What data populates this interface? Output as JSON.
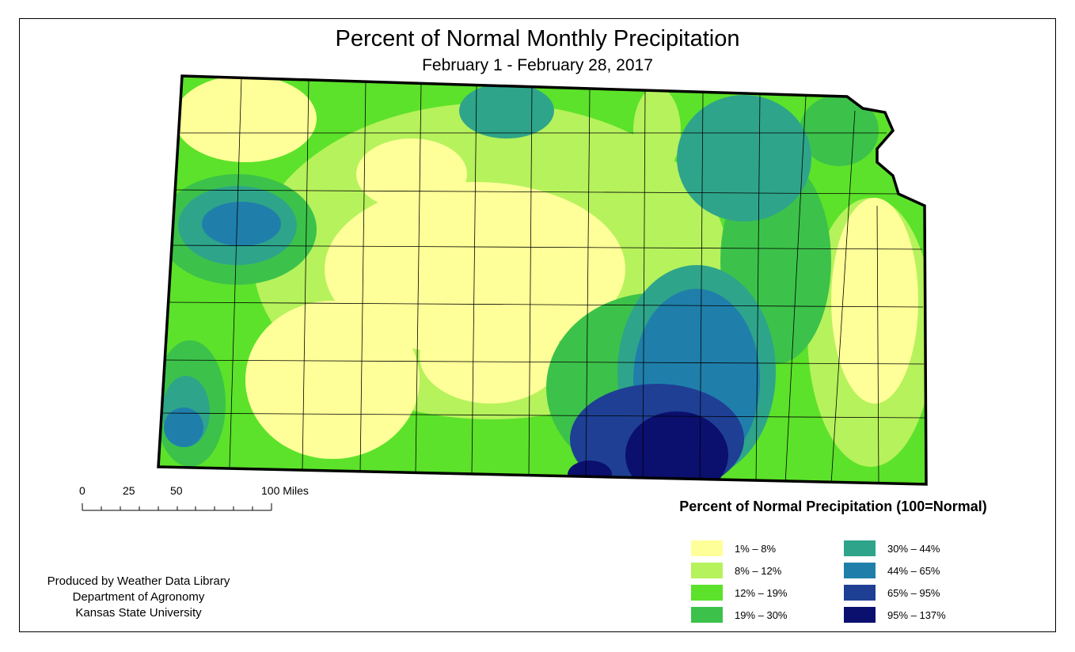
{
  "title": "Percent of Normal Monthly Precipitation",
  "subtitle": "February 1 - February 28, 2017",
  "scale_bar": {
    "labels": [
      "0",
      "25",
      "50",
      "100 Miles"
    ]
  },
  "credits": [
    "Produced by Weather Data Library",
    "Department of Agronomy",
    "Kansas State University"
  ],
  "legend": {
    "title": "Percent of Normal Precipitation (100=Normal)",
    "classes": [
      {
        "label": "1% – 8%",
        "color": "#ffff99"
      },
      {
        "label": "8% – 12%",
        "color": "#b6f25c"
      },
      {
        "label": "12% – 19%",
        "color": "#5ce22a"
      },
      {
        "label": "19% – 30%",
        "color": "#3cc24a"
      },
      {
        "label": "30% – 44%",
        "color": "#2ea58a"
      },
      {
        "label": "44% – 65%",
        "color": "#1f7faa"
      },
      {
        "label": "65% – 95%",
        "color": "#1e3f94"
      },
      {
        "label": "95% – 137%",
        "color": "#0b0f6e"
      }
    ]
  }
}
